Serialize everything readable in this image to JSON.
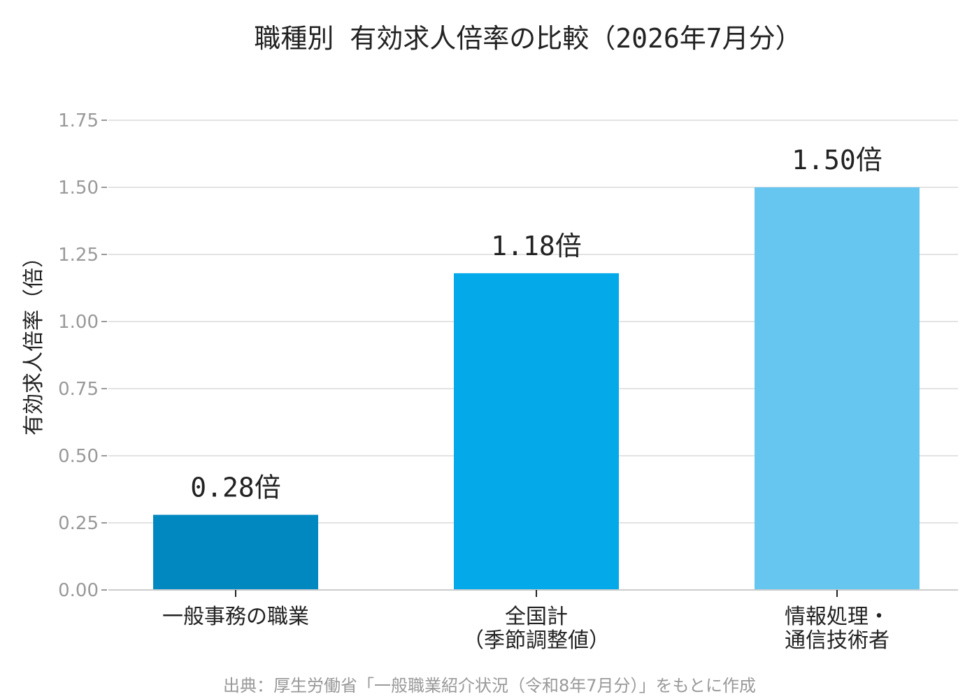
{
  "chart_data": {
    "type": "bar",
    "title": "職種別 有効求人倍率の比較（2026年7月分）",
    "ylabel": "有効求人倍率（倍）",
    "xlabel": "",
    "categories": [
      [
        "一般事務の職業"
      ],
      [
        "全国計",
        "（季節調整値）"
      ],
      [
        "情報処理・",
        "通信技術者"
      ]
    ],
    "values": [
      0.28,
      1.18,
      1.5
    ],
    "value_labels": [
      "0.28倍",
      "1.18倍",
      "1.50倍"
    ],
    "bar_colors": [
      "#0288c1",
      "#03a9e8",
      "#66c6f0"
    ],
    "yticks": [
      "0.00",
      "0.25",
      "0.50",
      "0.75",
      "1.00",
      "1.25",
      "1.50",
      "1.75"
    ],
    "ylim": [
      0,
      1.9
    ],
    "grid": true,
    "legend": "none"
  },
  "source": "出典：厚生労働省「一般職業紹介状況（令和8年7月分）」をもとに作成"
}
